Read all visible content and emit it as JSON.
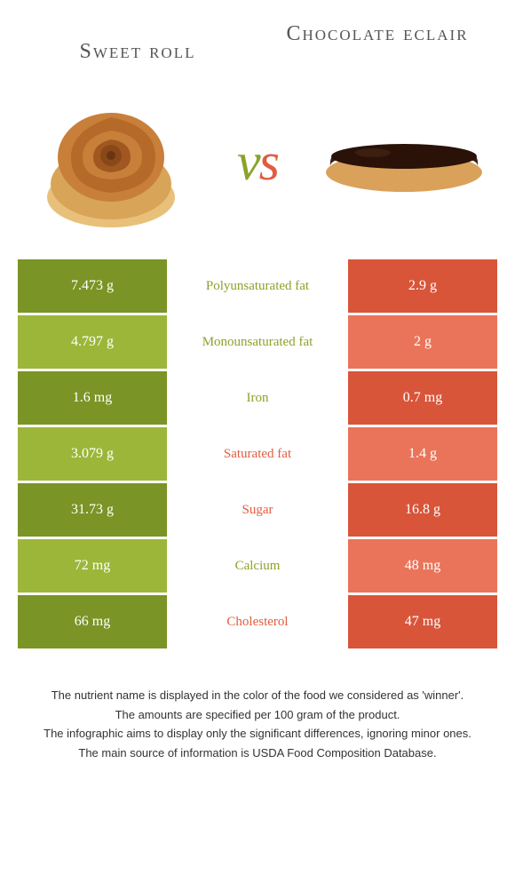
{
  "food_left": {
    "name": "Sweet roll",
    "color": "#8aa32a"
  },
  "food_right": {
    "name": "Chocolate eclair",
    "color": "#e15c3f"
  },
  "vs_text": {
    "v": "v",
    "s": "s"
  },
  "nutrients": [
    {
      "label": "Polyunsaturated fat",
      "left": "7.473 g",
      "right": "2.9 g",
      "winner": "left"
    },
    {
      "label": "Monounsaturated fat",
      "left": "4.797 g",
      "right": "2 g",
      "winner": "left"
    },
    {
      "label": "Iron",
      "left": "1.6 mg",
      "right": "0.7 mg",
      "winner": "left"
    },
    {
      "label": "Saturated fat",
      "left": "3.079 g",
      "right": "1.4 g",
      "winner": "right"
    },
    {
      "label": "Sugar",
      "left": "31.73 g",
      "right": "16.8 g",
      "winner": "right"
    },
    {
      "label": "Calcium",
      "left": "72 mg",
      "right": "48 mg",
      "winner": "left"
    },
    {
      "label": "Cholesterol",
      "left": "66 mg",
      "right": "47 mg",
      "winner": "right"
    }
  ],
  "left_bar_colors": {
    "dark": "#7a9426",
    "light": "#9cb63a"
  },
  "right_bar_colors": {
    "dark": "#d8553a",
    "light": "#e9745a"
  },
  "footer": {
    "line1": "The nutrient name is displayed in the color of the food we considered as 'winner'.",
    "line2": "The amounts are specified per 100 gram of the product.",
    "line3": "The infographic aims to display only the significant differences, ignoring minor ones.",
    "line4": "The main source of information is USDA Food Composition Database."
  }
}
